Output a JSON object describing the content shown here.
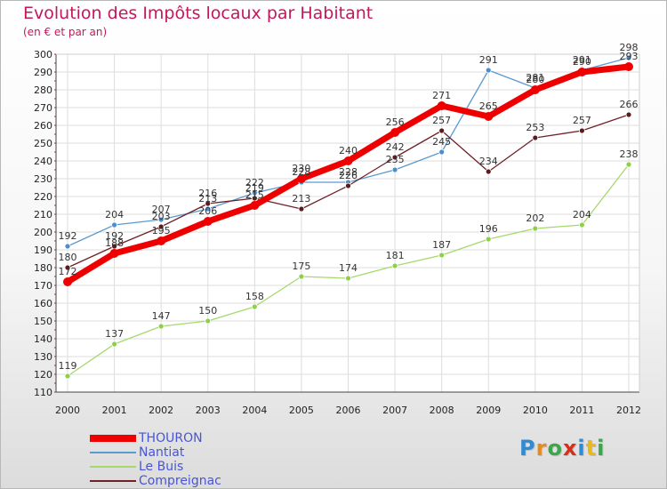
{
  "header": {
    "title": "Evolution des Impôts locaux par Habitant",
    "subtitle": "(en € et par an)"
  },
  "logo": {
    "text": "Proxiti",
    "letters": [
      {
        "ch": "P",
        "color": "#2e8bd6"
      },
      {
        "ch": "r",
        "color": "#e88a1c"
      },
      {
        "ch": "o",
        "color": "#3aa84a"
      },
      {
        "ch": "x",
        "color": "#d6301c"
      },
      {
        "ch": "i",
        "color": "#2e8bd6"
      },
      {
        "ch": "t",
        "color": "#e8b81c"
      },
      {
        "ch": "i",
        "color": "#3aa84a"
      }
    ]
  },
  "chart_data": {
    "type": "line",
    "title": "Evolution des Impôts locaux par Habitant",
    "subtitle": "(en € et par an)",
    "xlabel": "",
    "ylabel": "",
    "categories": [
      "2000",
      "2001",
      "2002",
      "2003",
      "2004",
      "2005",
      "2006",
      "2007",
      "2008",
      "2009",
      "2010",
      "2011",
      "2012"
    ],
    "ylim": [
      110,
      300
    ],
    "yticks": [
      110,
      120,
      130,
      140,
      150,
      160,
      170,
      180,
      190,
      200,
      210,
      220,
      230,
      240,
      250,
      260,
      270,
      280,
      290,
      300
    ],
    "grid": true,
    "legend_position": "bottom-left",
    "series": [
      {
        "name": "Nantiat",
        "color": "#5a9ad0",
        "values": [
          192,
          204,
          207,
          213,
          222,
          228,
          228,
          235,
          245,
          291,
          281,
          291,
          298
        ]
      },
      {
        "name": "Le Buis",
        "color": "#a6d86a",
        "values": [
          119,
          137,
          147,
          150,
          158,
          175,
          174,
          181,
          187,
          196,
          202,
          204,
          238
        ]
      },
      {
        "name": "Compreignac",
        "color": "#6e2226",
        "values": [
          180,
          192,
          203,
          216,
          219,
          213,
          226,
          242,
          257,
          234,
          253,
          257,
          266
        ]
      },
      {
        "name": "THOURON",
        "color": "#ee0000",
        "values": [
          172,
          188,
          195,
          206,
          215,
          230,
          240,
          256,
          271,
          265,
          280,
          290,
          293
        ]
      }
    ]
  }
}
